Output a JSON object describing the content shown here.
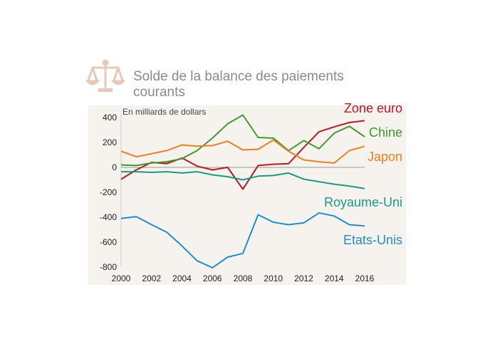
{
  "chart_data": {
    "type": "line",
    "title": "Solde de la balance des paiements courants",
    "unit_label": "En milliards de dollars",
    "icon": "scales-icon",
    "x": [
      2000,
      2001,
      2002,
      2003,
      2004,
      2005,
      2006,
      2007,
      2008,
      2009,
      2010,
      2011,
      2012,
      2013,
      2014,
      2015,
      2016
    ],
    "x_ticks": [
      "2000",
      "2002",
      "2004",
      "2006",
      "2008",
      "2010",
      "2012",
      "2014",
      "2016"
    ],
    "y_ticks": [
      "400",
      "200",
      "0",
      "-200",
      "-400",
      "-600",
      "-800"
    ],
    "xlim": [
      2000,
      2016
    ],
    "ylim": [
      -800,
      400
    ],
    "background_color": "#f6f3ee",
    "zero_line_color": "#aaaaaa",
    "series": [
      {
        "name": "Zone euro",
        "color": "#c0161c",
        "values": [
          -95,
          -20,
          40,
          30,
          75,
          10,
          -20,
          0,
          -175,
          15,
          25,
          30,
          160,
          285,
          325,
          360,
          375
        ]
      },
      {
        "name": "Chine",
        "color": "#3e9a2d",
        "values": [
          20,
          15,
          35,
          45,
          70,
          135,
          235,
          350,
          420,
          240,
          235,
          135,
          215,
          150,
          275,
          330,
          245
        ]
      },
      {
        "name": "Japon",
        "color": "#ee7f1b",
        "values": [
          130,
          85,
          110,
          135,
          180,
          170,
          175,
          210,
          140,
          145,
          220,
          130,
          60,
          45,
          35,
          135,
          170
        ]
      },
      {
        "name": "Royaume-Uni",
        "color": "#179c82",
        "values": [
          -35,
          -35,
          -40,
          -35,
          -45,
          -35,
          -60,
          -75,
          -100,
          -70,
          -65,
          -45,
          -95,
          -115,
          -135,
          -150,
          -170
        ]
      },
      {
        "name": "Etats-Unis",
        "color": "#1f8ec9",
        "values": [
          -410,
          -395,
          -460,
          -520,
          -630,
          -750,
          -805,
          -720,
          -690,
          -380,
          -440,
          -460,
          -445,
          -365,
          -390,
          -460,
          -470
        ]
      }
    ]
  }
}
